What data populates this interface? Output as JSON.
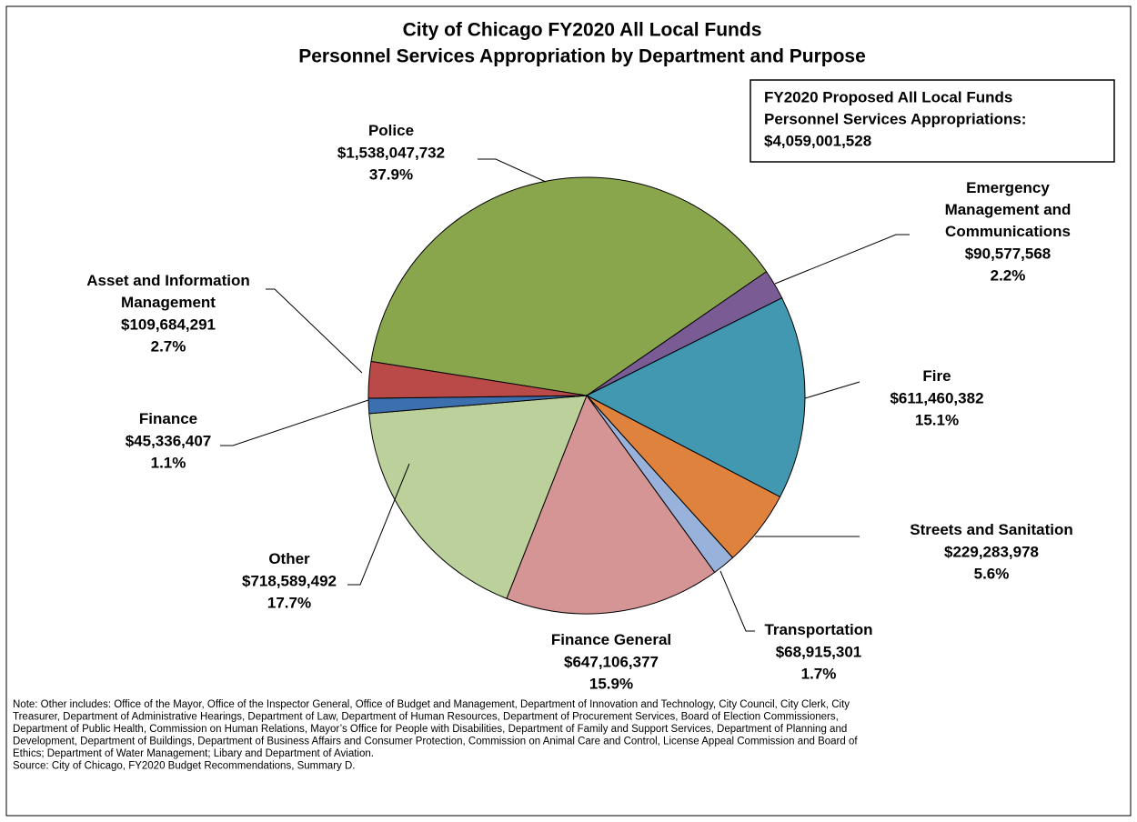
{
  "chart_data": {
    "type": "pie",
    "title": "City of Chicago FY2020 All Local Funds",
    "subtitle": "Personnel Services Appropriation by Department and Purpose",
    "categories": [
      "Police",
      "Emergency\nManagement and\nCommunications",
      "Fire",
      "Streets and Sanitation",
      "Transportation",
      "Finance General",
      "Other",
      "Finance",
      "Asset and Information\nManagement"
    ],
    "values": [
      1538047732,
      90577568,
      611460382,
      229283978,
      68915301,
      647106377,
      718589492,
      45336407,
      109684291
    ],
    "value_labels": [
      "$1,538,047,732",
      "$90,577,568",
      "$611,460,382",
      "$229,283,978",
      "$68,915,301",
      "$647,106,377",
      "$718,589,492",
      "$45,336,407",
      "$109,684,291"
    ],
    "percent_labels": [
      "37.9%",
      "2.2%",
      "15.1%",
      "5.6%",
      "1.7%",
      "15.9%",
      "17.7%",
      "1.1%",
      "2.7%"
    ],
    "colors": [
      "#8aa64d",
      "#7a5b94",
      "#4198b0",
      "#df823e",
      "#99b2dc",
      "#d49594",
      "#bbd09b",
      "#3c6fae",
      "#b94a48"
    ],
    "total_box": [
      "FY2020 Proposed All Local Funds",
      "Personnel Services Appropriations:",
      "$4,059,001,528"
    ],
    "note": [
      "Note: Other includes: Office of the Mayor, Office of the Inspector General, Office of Budget and Management, Department of Innovation  and Technology, City Council, City Clerk, City",
      "Treasurer, Department of Administrative Hearings, Department of Law, Department of Human Resources, Department of Procurement Services, Board of Election Commissioners,",
      "Department of Public Health, Commission on Human Relations, Mayor’s Office for People with Disabilities, Department of Family and Support Services, Department of Planning and",
      "Development, Department of Buildings, Department of Business Affairs and Consumer Protection, Commission on Animal Care and Control, License Appeal Commission and Board of",
      "Ethics; Department of Water Management;  Libary and Department of Aviation.",
      "Source: City of Chicago, FY2020 Budget Recommendations, Summary D."
    ]
  }
}
